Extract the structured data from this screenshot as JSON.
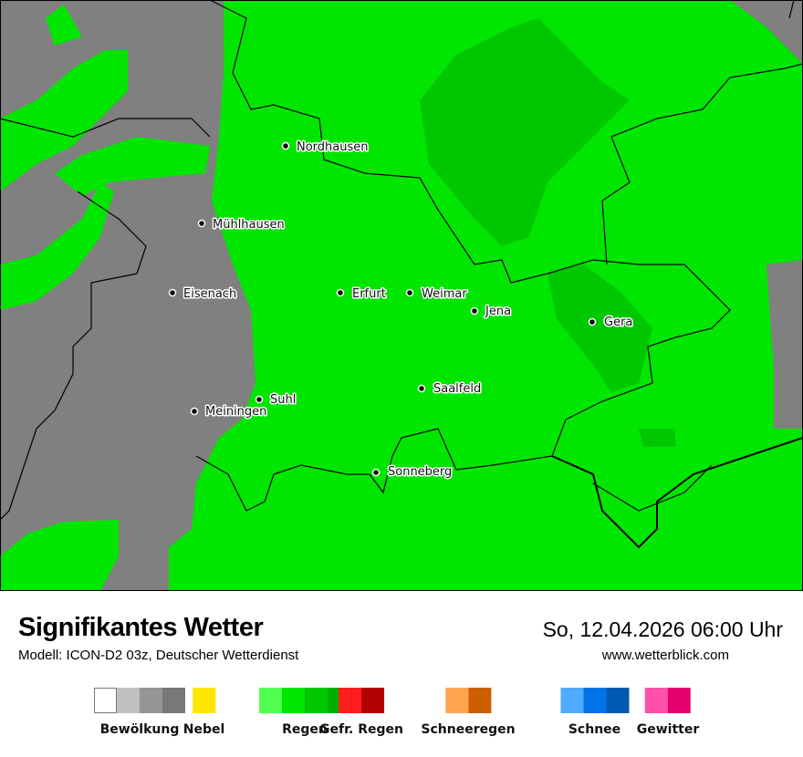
{
  "header": {
    "title": "Signifikantes Wetter",
    "model": "Modell: ICON-D2 03z, Deutscher Wetterdienst",
    "datetime": "So, 12.04.2026 06:00 Uhr",
    "website": "www.wetterblick.com"
  },
  "map": {
    "colors": {
      "rain_light": "#00e600",
      "rain_medium": "#00c800",
      "cloud": "#808080",
      "border": "#000000"
    },
    "cities": [
      {
        "name": "Nordhausen"
      },
      {
        "name": "Mühlhausen"
      },
      {
        "name": "Eisenach"
      },
      {
        "name": "Erfurt"
      },
      {
        "name": "Weimar"
      },
      {
        "name": "Jena"
      },
      {
        "name": "Gera"
      },
      {
        "name": "Saalfeld"
      },
      {
        "name": "Suhl"
      },
      {
        "name": "Meiningen"
      },
      {
        "name": "Sonneberg"
      }
    ]
  },
  "legend": [
    {
      "label": "Bewölkung",
      "colors": [
        "#ffffff",
        "#c0c0c0",
        "#969696",
        "#787878"
      ]
    },
    {
      "label": "Nebel",
      "colors": [
        "#ffe600"
      ]
    },
    {
      "label": "Regen",
      "colors": [
        "#50ff50",
        "#00e600",
        "#00c800",
        "#00b000"
      ]
    },
    {
      "label": "Gefr. Regen",
      "colors": [
        "#ff1e1e",
        "#b40000"
      ]
    },
    {
      "label": "Schneeregen",
      "colors": [
        "#ffa550",
        "#cd5f00"
      ]
    },
    {
      "label": "Schnee",
      "colors": [
        "#50aaff",
        "#0073e6",
        "#005ab4"
      ]
    },
    {
      "label": "Gewitter",
      "colors": [
        "#ff50aa",
        "#e6006e"
      ]
    }
  ]
}
